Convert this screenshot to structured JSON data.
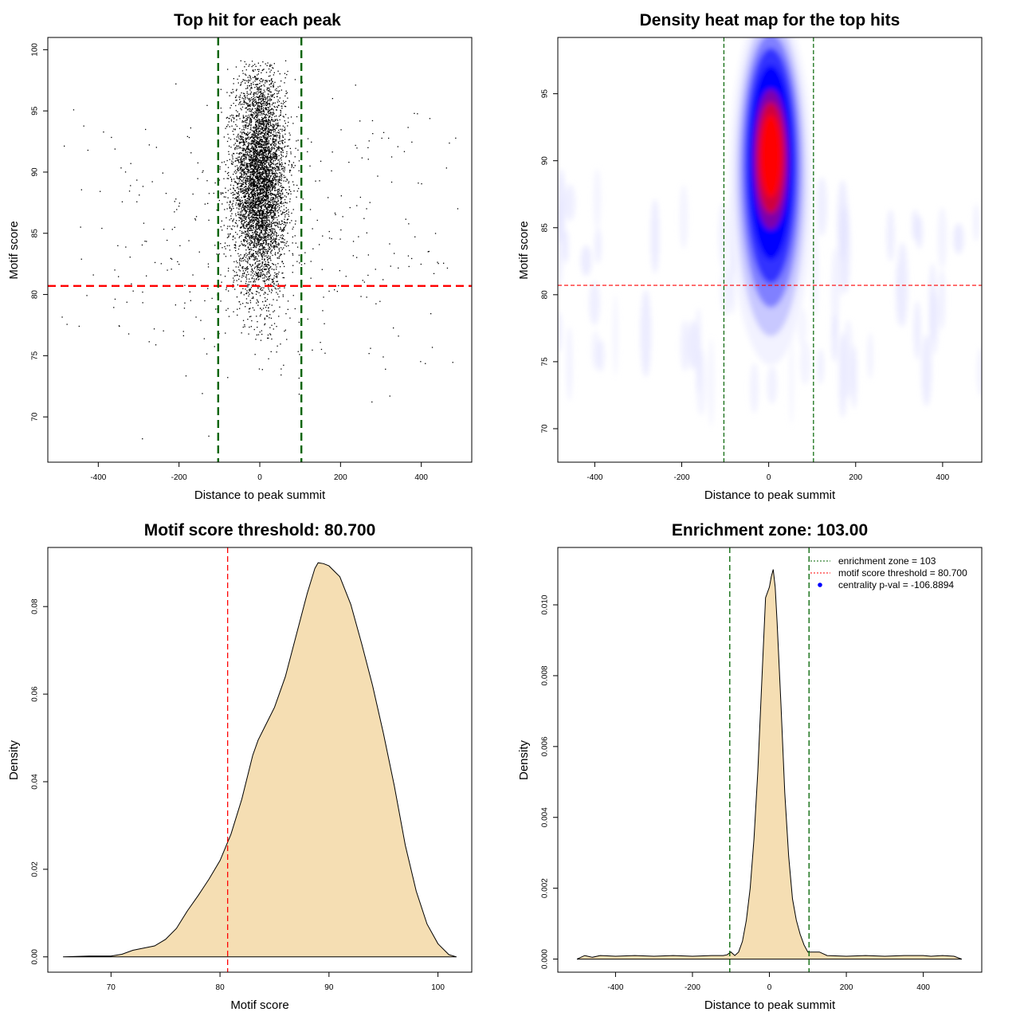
{
  "chart_data": [
    {
      "type": "scatter",
      "title": "Top hit for each peak",
      "xlabel": "Distance to peak summit",
      "ylabel": "Motif score",
      "xlim": [
        -525,
        525
      ],
      "ylim": [
        66.3,
        101.0
      ],
      "xticks": [
        -400,
        -200,
        0,
        200,
        400
      ],
      "yticks": [
        70,
        75,
        80,
        85,
        90,
        95,
        100
      ],
      "hlines": [
        {
          "y": 80.7,
          "color": "#ff0000"
        }
      ],
      "vlines": [
        {
          "x": -103,
          "color": "#006400"
        },
        {
          "x": 103,
          "color": "#006400"
        }
      ],
      "point_color": "#000000",
      "clusters": [
        {
          "center_x": 0,
          "center_y": 89.3,
          "sd_x": 32,
          "sd_y": 4.5,
          "x_range": [
            -100,
            100
          ],
          "y_range": [
            73.8,
            99.1
          ],
          "count": 5200
        },
        {
          "center_x": 0,
          "center_y": 85,
          "sd_x": 270,
          "sd_y": 6,
          "x_range": [
            -500,
            500
          ],
          "y_range": [
            67.4,
            98.4
          ],
          "count": 420
        }
      ]
    },
    {
      "type": "heatmap",
      "title": "Density heat map for the top hits",
      "xlabel": "Distance to peak summit",
      "ylabel": "Motif score",
      "xlim": [
        -485,
        490
      ],
      "ylim": [
        67.5,
        99.2
      ],
      "xticks": [
        -400,
        -200,
        0,
        200,
        400
      ],
      "yticks": [
        70,
        75,
        80,
        85,
        90,
        95
      ],
      "hlines": [
        {
          "y": 80.7,
          "color": "#ff0000"
        }
      ],
      "vlines": [
        {
          "x": -103,
          "color": "#006400"
        },
        {
          "x": 103,
          "color": "#006400"
        }
      ],
      "colors": [
        "#ffffff",
        "#0000ff",
        "#ff0000"
      ],
      "peak": {
        "x": 5,
        "y": 89.5
      }
    },
    {
      "type": "area",
      "title": "Motif score threshold: 80.700",
      "xlabel": "Motif score",
      "ylabel": "Density",
      "xlim": [
        64.2,
        103.1
      ],
      "ylim": [
        -0.0035,
        0.0935
      ],
      "xticks": [
        70,
        80,
        90,
        100
      ],
      "yticks": [
        0.0,
        0.02,
        0.04,
        0.06,
        0.08
      ],
      "ytick_labels": [
        "0.00",
        "0.02",
        "0.04",
        "0.06",
        "0.08"
      ],
      "fill": "#f5deb3",
      "vlines": [
        {
          "x": 80.7,
          "color": "#ff0000"
        }
      ],
      "x": [
        65.6,
        68,
        70,
        71,
        72,
        73,
        74,
        75,
        76,
        77,
        78,
        79,
        80,
        81,
        82,
        83,
        83.5,
        84,
        85,
        86,
        87,
        88,
        88.7,
        89,
        89.5,
        90,
        91,
        92,
        93,
        94,
        95,
        96,
        97,
        98,
        99,
        100,
        101,
        101.7
      ],
      "y": [
        0.0,
        0.0002,
        0.0002,
        0.0006,
        0.0015,
        0.002,
        0.0025,
        0.004,
        0.0065,
        0.0105,
        0.014,
        0.0178,
        0.022,
        0.028,
        0.036,
        0.046,
        0.0495,
        0.052,
        0.057,
        0.064,
        0.0735,
        0.083,
        0.0887,
        0.09,
        0.0898,
        0.0893,
        0.0868,
        0.0805,
        0.0715,
        0.062,
        0.051,
        0.039,
        0.0255,
        0.015,
        0.0075,
        0.003,
        0.0005,
        0.0
      ]
    },
    {
      "type": "area",
      "title": "Enrichment zone: 103.00",
      "xlabel": "Distance to peak summit",
      "ylabel": "Density",
      "xlim": [
        -550,
        552
      ],
      "ylim": [
        -0.00037,
        0.01162
      ],
      "xticks": [
        -400,
        -200,
        0,
        200,
        400
      ],
      "yticks": [
        0.0,
        0.002,
        0.004,
        0.006,
        0.008,
        0.01
      ],
      "ytick_labels": [
        "0.000",
        "0.002",
        "0.004",
        "0.006",
        "0.008",
        "0.010"
      ],
      "fill": "#f5deb3",
      "vlines": [
        {
          "x": -103,
          "color": "#006400"
        },
        {
          "x": 103,
          "color": "#006400"
        }
      ],
      "x": [
        -500,
        -480,
        -460,
        -440,
        -400,
        -350,
        -300,
        -250,
        -200,
        -150,
        -120,
        -110,
        -100,
        -90,
        -80,
        -70,
        -60,
        -50,
        -40,
        -30,
        -20,
        -10,
        0,
        5,
        10,
        15,
        20,
        30,
        40,
        50,
        60,
        70,
        80,
        90,
        100,
        110,
        120,
        130,
        150,
        200,
        250,
        300,
        350,
        380,
        400,
        420,
        450,
        480,
        500
      ],
      "y": [
        0.0,
        0.0001,
        5e-05,
        0.0001,
        8e-05,
        0.0001,
        8e-05,
        0.0001,
        8e-05,
        0.0001,
        0.0001,
        0.00012,
        0.0002,
        0.0001,
        0.0002,
        0.0005,
        0.0011,
        0.002,
        0.0034,
        0.0053,
        0.0078,
        0.0102,
        0.0105,
        0.0108,
        0.011,
        0.0105,
        0.0095,
        0.0072,
        0.0047,
        0.0029,
        0.0017,
        0.0011,
        0.0007,
        0.0004,
        0.0002,
        0.0002,
        0.0002,
        0.0002,
        0.0001,
        8e-05,
        0.0001,
        8e-05,
        0.0001,
        0.0001,
        0.0001,
        8e-05,
        0.0001,
        8e-05,
        0.0
      ],
      "legend": {
        "position": "top-right",
        "entries": [
          {
            "label": "enrichment zone = 103",
            "color": "#006400",
            "style": "dotted-line"
          },
          {
            "label": "motif score threshold = 80.700",
            "color": "#ff0000",
            "style": "dotted-line"
          },
          {
            "label": "centrality p-val = -106.8894",
            "color": "#0000ff",
            "style": "point"
          }
        ]
      }
    }
  ]
}
